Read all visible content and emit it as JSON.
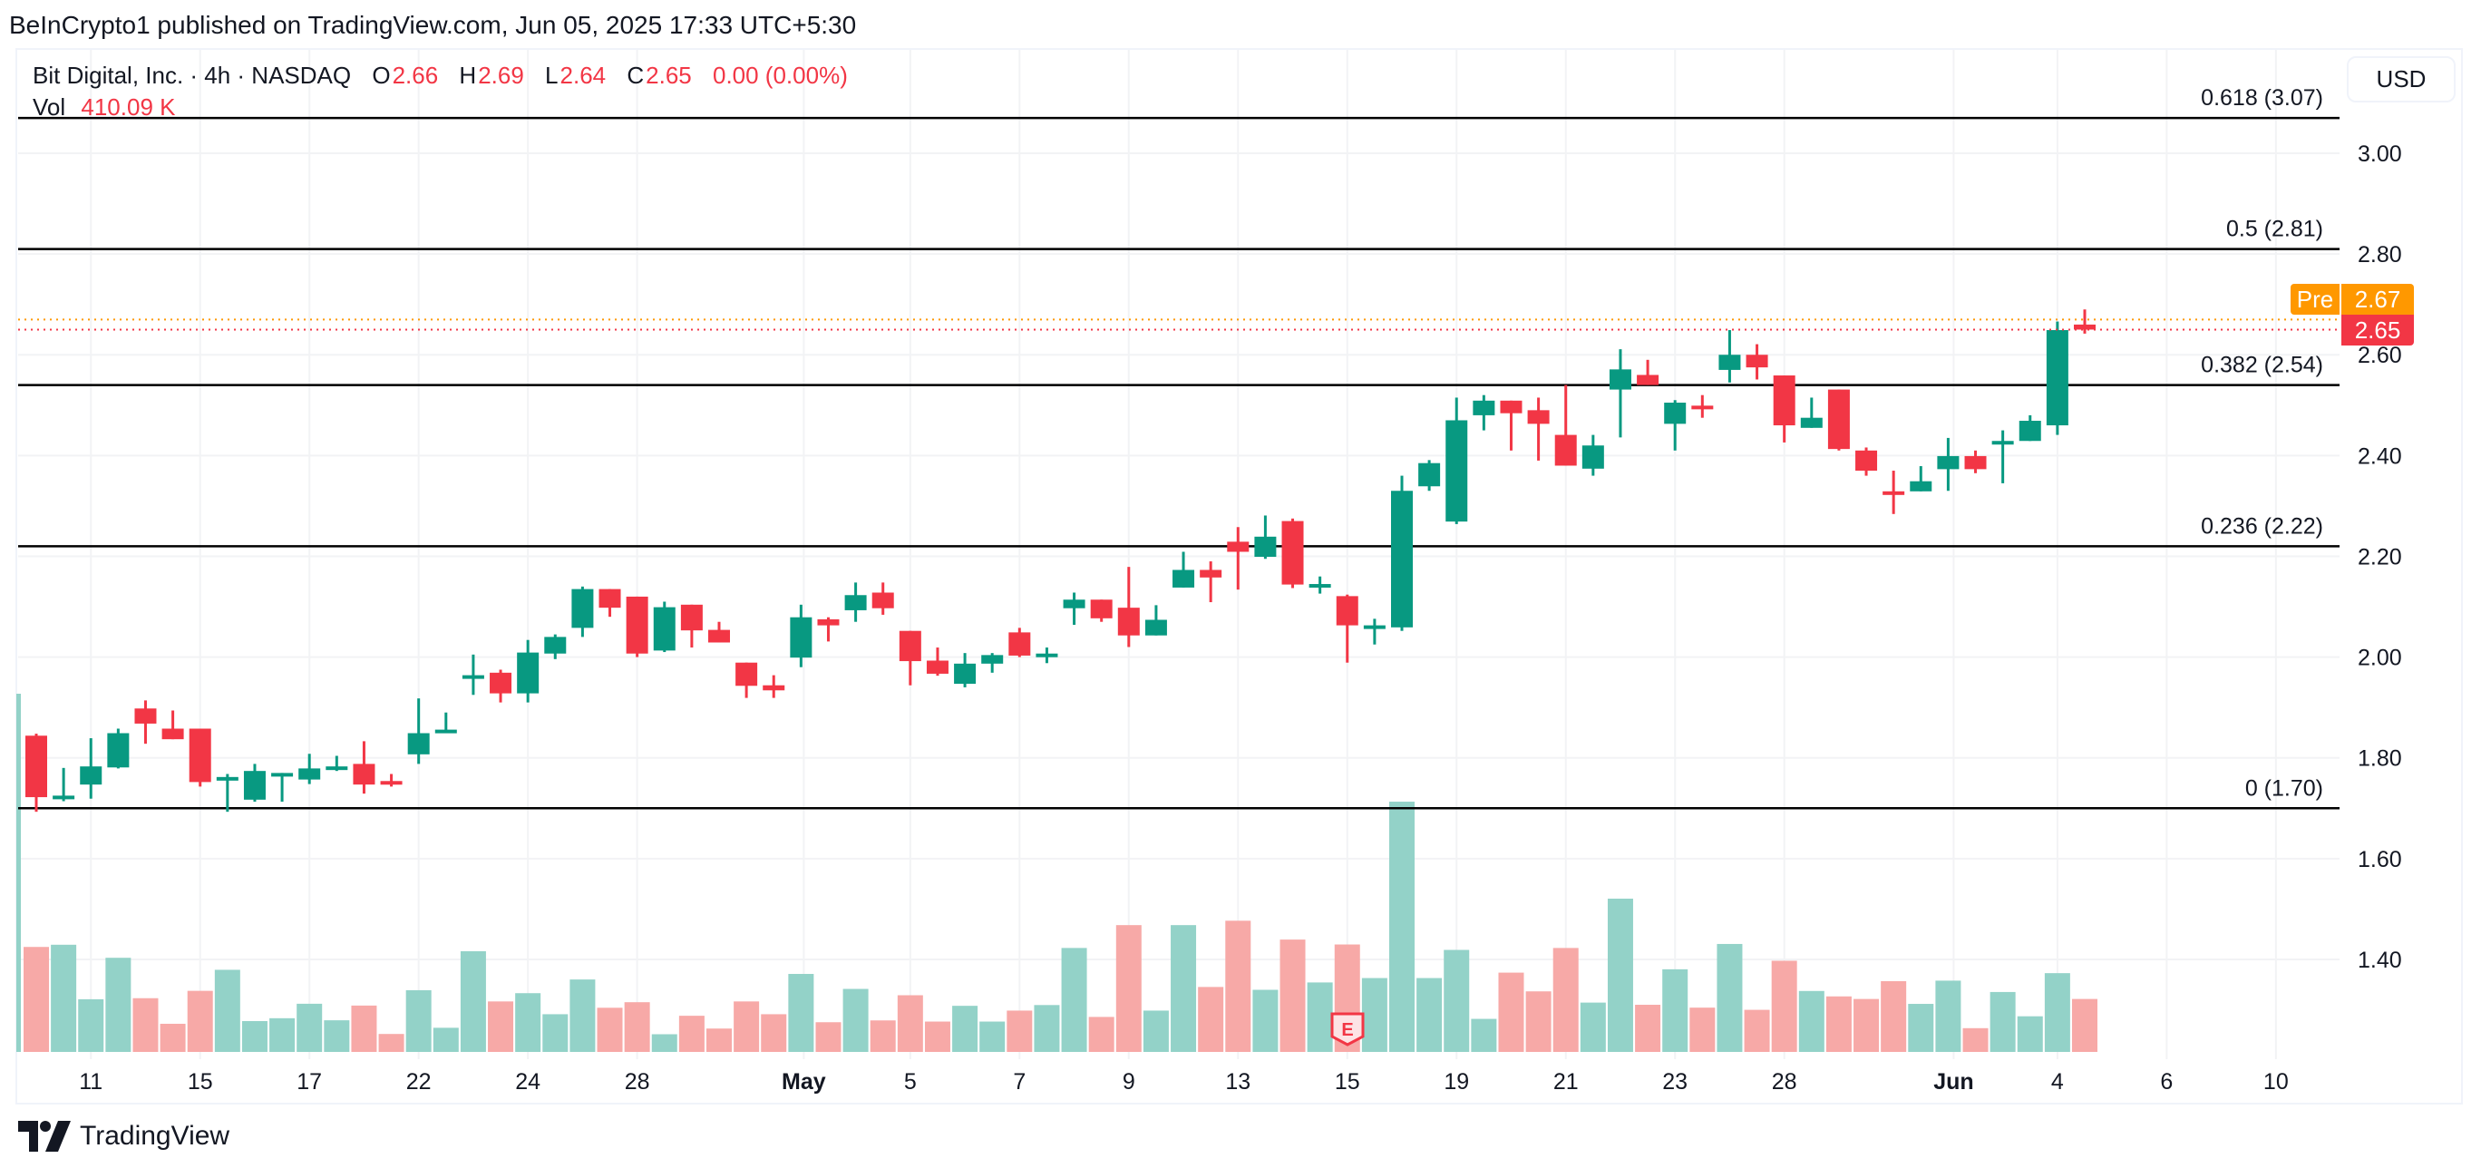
{
  "header": {
    "published": "BeInCrypto1 published on TradingView.com, Jun 05, 2025 17:33 UTC+5:30"
  },
  "legend": {
    "symbol": "Bit Digital, Inc. · 4h · NASDAQ",
    "o_label": "O",
    "o": "2.66",
    "h_label": "H",
    "h": "2.69",
    "l_label": "L",
    "l": "2.64",
    "c_label": "C",
    "c": "2.65",
    "change": "0.00 (0.00%)",
    "vol_label": "Vol",
    "vol": "410.09 K"
  },
  "price_axis": {
    "currency": "USD",
    "pre_label": "Pre",
    "pre_price": "2.67",
    "last_price": "2.65"
  },
  "earnings_marker": "E",
  "brand": "TradingView",
  "colors": {
    "up": "#089981",
    "down": "#F23645",
    "up_vol": "#93D2C8",
    "down_vol": "#F7A9A7",
    "pre": "#FF9800"
  },
  "chart_data": {
    "type": "candlestick",
    "title": "Bit Digital, Inc. · 4h · NASDAQ",
    "ylabel": "USD",
    "ylim": [
      1.2,
      3.2
    ],
    "y_ticks": [
      "3.00",
      "2.80",
      "2.60",
      "2.40",
      "2.20",
      "2.00",
      "1.80",
      "1.60",
      "1.40"
    ],
    "x_ticks": [
      {
        "label": "11",
        "bar": 2
      },
      {
        "label": "15",
        "bar": 6
      },
      {
        "label": "17",
        "bar": 10
      },
      {
        "label": "22",
        "bar": 14
      },
      {
        "label": "24",
        "bar": 18
      },
      {
        "label": "28",
        "bar": 22
      },
      {
        "label": "May",
        "bar": 28.1,
        "bold": true
      },
      {
        "label": "5",
        "bar": 32
      },
      {
        "label": "7",
        "bar": 36
      },
      {
        "label": "9",
        "bar": 40
      },
      {
        "label": "13",
        "bar": 44
      },
      {
        "label": "15",
        "bar": 48
      },
      {
        "label": "19",
        "bar": 52
      },
      {
        "label": "21",
        "bar": 56
      },
      {
        "label": "23",
        "bar": 60
      },
      {
        "label": "28",
        "bar": 64
      },
      {
        "label": "Jun",
        "bar": 70.2,
        "bold": true
      },
      {
        "label": "4",
        "bar": 74
      },
      {
        "label": "6",
        "bar": 78
      },
      {
        "label": "10",
        "bar": 82
      }
    ],
    "fib_levels": [
      {
        "label": "0.618 (3.07)",
        "price": 3.07
      },
      {
        "label": "0.5 (2.81)",
        "price": 2.81
      },
      {
        "label": "0.382 (2.54)",
        "price": 2.54
      },
      {
        "label": "0.236 (2.22)",
        "price": 2.22
      },
      {
        "label": "0 (1.70)",
        "price": 1.7
      }
    ],
    "pre_market_price": 2.67,
    "last_price": 2.65,
    "earnings_bar": 48,
    "volume_unit": "K",
    "candles_fields": [
      "open",
      "high",
      "low",
      "close",
      "volume"
    ],
    "candles": [
      [
        1.844,
        1.848,
        1.693,
        1.722,
        813
      ],
      [
        1.72,
        1.78,
        1.714,
        1.725,
        830
      ],
      [
        1.747,
        1.839,
        1.719,
        1.783,
        408
      ],
      [
        1.781,
        1.858,
        1.779,
        1.849,
        729
      ],
      [
        1.898,
        1.914,
        1.828,
        1.868,
        416
      ],
      [
        1.858,
        1.894,
        1.837,
        1.837,
        218
      ],
      [
        1.858,
        1.858,
        1.743,
        1.752,
        473
      ],
      [
        1.757,
        1.768,
        1.693,
        1.762,
        636
      ],
      [
        1.717,
        1.788,
        1.713,
        1.774,
        239
      ],
      [
        1.767,
        1.77,
        1.713,
        1.77,
        261
      ],
      [
        1.757,
        1.808,
        1.748,
        1.779,
        373
      ],
      [
        1.778,
        1.804,
        1.774,
        1.783,
        245
      ],
      [
        1.788,
        1.833,
        1.729,
        1.747,
        359
      ],
      [
        1.754,
        1.768,
        1.743,
        1.747,
        139
      ],
      [
        1.807,
        1.918,
        1.788,
        1.849,
        478
      ],
      [
        1.853,
        1.89,
        1.851,
        1.856,
        187
      ],
      [
        1.96,
        2.005,
        1.925,
        1.964,
        780
      ],
      [
        1.969,
        1.975,
        1.91,
        1.928,
        391
      ],
      [
        1.928,
        2.034,
        1.91,
        2.009,
        455
      ],
      [
        2.007,
        2.045,
        1.996,
        2.04,
        292
      ],
      [
        2.058,
        2.14,
        2.04,
        2.135,
        561
      ],
      [
        2.135,
        2.135,
        2.08,
        2.098,
        342
      ],
      [
        2.12,
        2.12,
        2.0,
        2.007,
        385
      ],
      [
        2.013,
        2.11,
        2.01,
        2.099,
        137
      ],
      [
        2.104,
        2.104,
        2.019,
        2.053,
        280
      ],
      [
        2.054,
        2.07,
        2.029,
        2.029,
        181
      ],
      [
        1.989,
        1.989,
        1.919,
        1.943,
        391
      ],
      [
        1.944,
        1.964,
        1.919,
        1.934,
        292
      ],
      [
        1.999,
        2.104,
        1.98,
        2.079,
        604
      ],
      [
        2.075,
        2.079,
        2.031,
        2.063,
        230
      ],
      [
        2.093,
        2.148,
        2.07,
        2.123,
        488
      ],
      [
        2.128,
        2.148,
        2.084,
        2.097,
        244
      ],
      [
        2.052,
        2.052,
        1.944,
        1.992,
        439
      ],
      [
        1.993,
        2.019,
        1.963,
        1.967,
        235
      ],
      [
        1.947,
        2.008,
        1.94,
        1.987,
        357
      ],
      [
        1.987,
        2.008,
        1.969,
        2.004,
        235
      ],
      [
        2.049,
        2.058,
        2.0,
        2.003,
        320
      ],
      [
        2.004,
        2.019,
        1.988,
        2.007,
        363
      ],
      [
        2.097,
        2.128,
        2.064,
        2.114,
        805
      ],
      [
        2.114,
        2.114,
        2.07,
        2.077,
        271
      ],
      [
        2.098,
        2.179,
        2.02,
        2.043,
        982
      ],
      [
        2.043,
        2.103,
        2.043,
        2.074,
        320
      ],
      [
        2.138,
        2.209,
        2.138,
        2.173,
        982
      ],
      [
        2.173,
        2.19,
        2.109,
        2.158,
        503
      ],
      [
        2.229,
        2.258,
        2.134,
        2.209,
        1016
      ],
      [
        2.199,
        2.281,
        2.195,
        2.239,
        481
      ],
      [
        2.27,
        2.275,
        2.137,
        2.144,
        870
      ],
      [
        2.14,
        2.16,
        2.126,
        2.145,
        538
      ],
      [
        2.121,
        2.124,
        1.989,
        2.063,
        832
      ],
      [
        2.06,
        2.076,
        2.025,
        2.063,
        572
      ],
      [
        2.059,
        2.36,
        2.052,
        2.33,
        1938
      ],
      [
        2.339,
        2.391,
        2.33,
        2.385,
        572
      ],
      [
        2.269,
        2.515,
        2.264,
        2.47,
        790
      ],
      [
        2.48,
        2.52,
        2.45,
        2.509,
        256
      ],
      [
        2.509,
        2.509,
        2.41,
        2.484,
        614
      ],
      [
        2.49,
        2.515,
        2.39,
        2.463,
        469
      ],
      [
        2.441,
        2.54,
        2.38,
        2.38,
        805
      ],
      [
        2.374,
        2.441,
        2.36,
        2.42,
        382
      ],
      [
        2.531,
        2.611,
        2.436,
        2.571,
        1187
      ],
      [
        2.56,
        2.59,
        2.54,
        2.54,
        365
      ],
      [
        2.463,
        2.51,
        2.41,
        2.505,
        640
      ],
      [
        2.499,
        2.52,
        2.475,
        2.495,
        343
      ],
      [
        2.57,
        2.649,
        2.545,
        2.6,
        836
      ],
      [
        2.6,
        2.621,
        2.551,
        2.575,
        326
      ],
      [
        2.559,
        2.559,
        2.426,
        2.46,
        706
      ],
      [
        2.455,
        2.515,
        2.455,
        2.475,
        472
      ],
      [
        2.531,
        2.531,
        2.41,
        2.413,
        430
      ],
      [
        2.41,
        2.416,
        2.36,
        2.37,
        410
      ],
      [
        2.329,
        2.37,
        2.284,
        2.325,
        548
      ],
      [
        2.329,
        2.379,
        2.329,
        2.349,
        372
      ],
      [
        2.373,
        2.435,
        2.33,
        2.399,
        552
      ],
      [
        2.399,
        2.41,
        2.365,
        2.373,
        184
      ],
      [
        2.425,
        2.45,
        2.345,
        2.429,
        464
      ],
      [
        2.429,
        2.48,
        2.429,
        2.469,
        276
      ],
      [
        2.46,
        2.666,
        2.441,
        2.649,
        610
      ],
      [
        2.66,
        2.69,
        2.642,
        2.65,
        410.09
      ]
    ]
  }
}
